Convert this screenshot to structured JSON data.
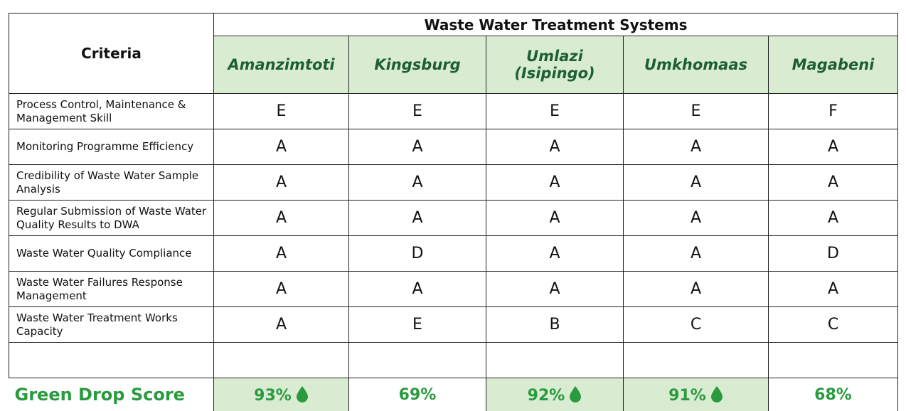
{
  "table": {
    "title": "Waste Water Treatment Systems",
    "criteria_header": "Criteria",
    "systems": [
      "Amanzimtoti",
      "Kingsburg",
      "Umlazi (Isipingo)",
      "Umkhomaas",
      "Magabeni"
    ],
    "rows": [
      {
        "criterion": "Process Control, Maintenance & Management Skill",
        "grades": [
          "E",
          "E",
          "E",
          "E",
          "F"
        ]
      },
      {
        "criterion": "Monitoring Programme Efficiency",
        "grades": [
          "A",
          "A",
          "A",
          "A",
          "A"
        ]
      },
      {
        "criterion": "Credibility of Waste Water Sample Analysis",
        "grades": [
          "A",
          "A",
          "A",
          "A",
          "A"
        ]
      },
      {
        "criterion": "Regular Submission of Waste Water Quality Results to DWA",
        "grades": [
          "A",
          "A",
          "A",
          "A",
          "A"
        ]
      },
      {
        "criterion": "Waste Water Quality Compliance",
        "grades": [
          "A",
          "D",
          "A",
          "A",
          "D"
        ]
      },
      {
        "criterion": "Waste Water Failures Response Management",
        "grades": [
          "A",
          "A",
          "A",
          "A",
          "A"
        ]
      },
      {
        "criterion": "Waste Water Treatment Works Capacity",
        "grades": [
          "A",
          "E",
          "B",
          "C",
          "C"
        ]
      }
    ],
    "score_label": "Green Drop Score",
    "scores": [
      "93%",
      "69%",
      "92%",
      "91%",
      "68%"
    ],
    "score_highlight": [
      true,
      false,
      true,
      true,
      false
    ],
    "header_color": "#d9ecd2",
    "score_color": "#2a9a3f"
  }
}
